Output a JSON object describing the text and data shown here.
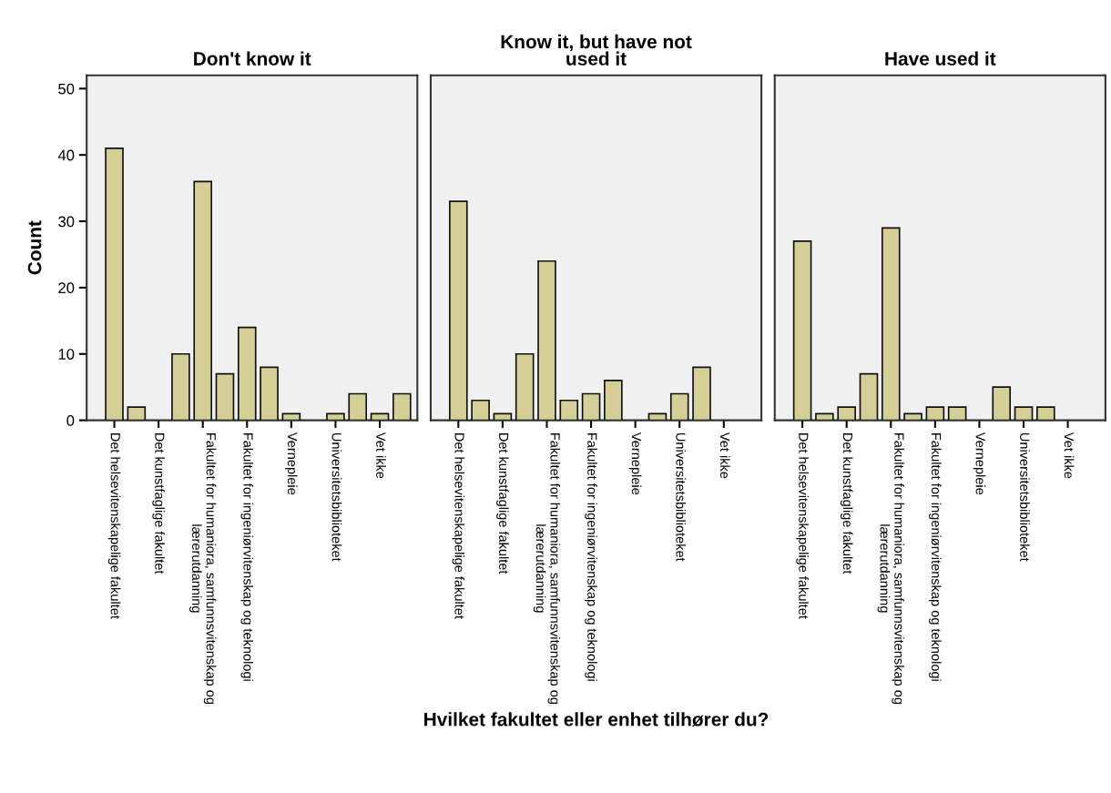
{
  "chart_data": [
    {
      "type": "bar",
      "title": "Don't know it",
      "ylabel": "Count",
      "categories": [
        "Det helsevitenskapelige fakultet",
        null,
        "Det kunstfaglige fakultet",
        null,
        "Fakultet for humaniora, samfunnsvitenskap og\nlærerutdanning",
        null,
        "Fakultet for ingeniørvitenskap og teknologi",
        null,
        "Vernepleie",
        null,
        "Universitetsbiblioteket",
        null,
        "Vet ikke",
        null
      ],
      "values": [
        41,
        2,
        null,
        10,
        36,
        7,
        14,
        8,
        1,
        null,
        1,
        4,
        1,
        4
      ],
      "color": "#d4cf96",
      "ylim": [
        0,
        52
      ],
      "yticks": [
        0,
        10,
        20,
        30,
        40,
        50
      ],
      "grid": false
    },
    {
      "type": "bar",
      "title": "Know it, but have not\nused it",
      "xlabel": "Hvilket fakultet eller enhet tilhører du?",
      "categories": [
        "Det helsevitenskapelige fakultet",
        null,
        "Det kunstfaglige fakultet",
        null,
        "Fakultet for humaniora, samfunnsvitenskap og\nlærerutdanning",
        null,
        "Fakultet for ingeniørvitenskap og teknologi",
        null,
        "Vernepleie",
        null,
        "Universitetsbiblioteket",
        null,
        "Vet ikke",
        null
      ],
      "values": [
        33,
        3,
        1,
        10,
        24,
        3,
        4,
        6,
        null,
        1,
        4,
        8,
        null,
        null
      ],
      "color": "#d4cf96",
      "ylim": [
        0,
        52
      ],
      "yticks": [
        0,
        10,
        20,
        30,
        40,
        50
      ],
      "grid": false,
      "tick_labels": "x"
    },
    {
      "type": "bar",
      "title": "Have used it",
      "categories": [
        "Det helsevitenskapelige fakultet",
        null,
        "Det kunstfaglige fakultet",
        null,
        "Fakultet for humaniora, samfunnsvitenskap og\nlærerutdanning",
        null,
        "Fakultet for ingeniørvitenskap og teknologi",
        null,
        "Vernepleie",
        null,
        "Universitetsbiblioteket",
        null,
        "Vet ikke",
        null
      ],
      "values": [
        27,
        1,
        2,
        7,
        29,
        1,
        2,
        2,
        null,
        5,
        2,
        2,
        null,
        null
      ],
      "color": "#d4cf96",
      "ylim": [
        0,
        52
      ],
      "yticks": [
        0,
        10,
        20,
        30,
        40,
        50
      ],
      "grid": false,
      "tick_labels": "x"
    }
  ]
}
